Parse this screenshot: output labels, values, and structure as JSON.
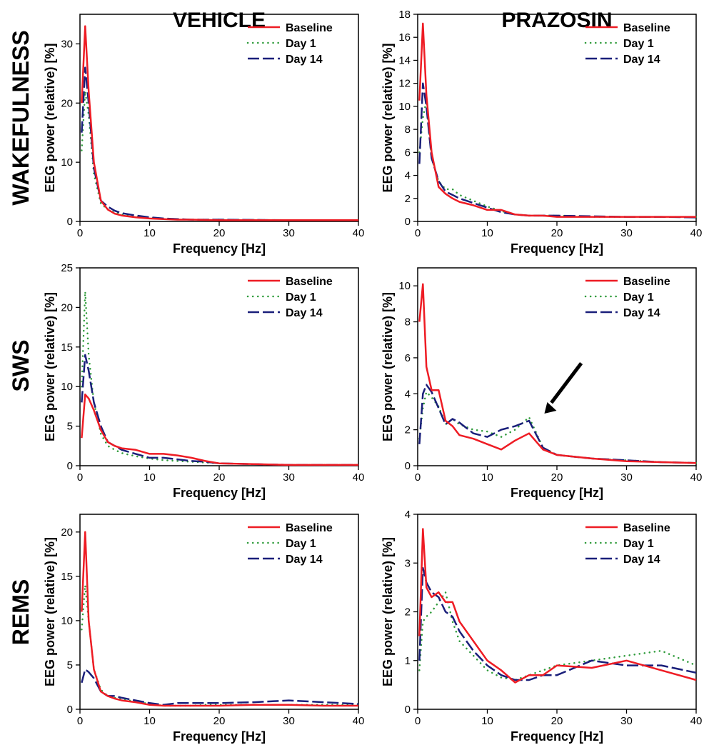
{
  "column_titles": [
    "VEHICLE",
    "PRAZOSIN"
  ],
  "row_labels": [
    "WAKEFULNESS",
    "SWS",
    "REMS"
  ],
  "colors": {
    "Baseline": "#ee1c24",
    "Day 1": "#2e9b3a",
    "Day 14": "#1a1f7a"
  },
  "chart_data": [
    {
      "type": "line",
      "title": "VEHICLE / WAKEFULNESS",
      "xlabel": "Frequency [Hz]",
      "ylabel": "EEG power (relative) [%]",
      "xlim": [
        0,
        40
      ],
      "ylim": [
        0,
        35
      ],
      "xticks": [
        0,
        10,
        20,
        30,
        40
      ],
      "yticks": [
        0,
        10,
        20,
        30
      ],
      "legend": "top-right",
      "x": [
        0.25,
        0.75,
        1.25,
        2,
        3,
        4,
        5,
        6,
        8,
        10,
        12,
        14,
        16,
        18,
        20,
        25,
        30,
        35,
        40
      ],
      "series": [
        {
          "name": "Baseline",
          "values": [
            20,
            33,
            22,
            10,
            3.5,
            2,
            1.3,
            1,
            0.7,
            0.5,
            0.4,
            0.3,
            0.3,
            0.25,
            0.2,
            0.2,
            0.2,
            0.2,
            0.2
          ]
        },
        {
          "name": "Day 1",
          "values": [
            12,
            22,
            18,
            8,
            3,
            2,
            1.5,
            1.2,
            0.8,
            0.6,
            0.5,
            0.4,
            0.3,
            0.3,
            0.3,
            0.25,
            0.2,
            0.2,
            0.2
          ]
        },
        {
          "name": "Day 14",
          "values": [
            15,
            26,
            20,
            9,
            3.5,
            2.5,
            1.8,
            1.4,
            1,
            0.7,
            0.5,
            0.4,
            0.3,
            0.3,
            0.3,
            0.25,
            0.2,
            0.2,
            0.2
          ]
        }
      ]
    },
    {
      "type": "line",
      "title": "PRAZOSIN / WAKEFULNESS",
      "xlabel": "Frequency [Hz]",
      "ylabel": "EEG power (relative) [%]",
      "xlim": [
        0,
        40
      ],
      "ylim": [
        0,
        18
      ],
      "xticks": [
        0,
        10,
        20,
        30,
        40
      ],
      "yticks": [
        0,
        2,
        4,
        6,
        8,
        10,
        12,
        14,
        16,
        18
      ],
      "legend": "top-right",
      "x": [
        0.25,
        0.75,
        1.25,
        2,
        3,
        4,
        5,
        6,
        8,
        10,
        12,
        14,
        16,
        18,
        20,
        25,
        30,
        35,
        40
      ],
      "series": [
        {
          "name": "Baseline",
          "values": [
            10.5,
            17.2,
            11,
            6,
            3,
            2.4,
            2,
            1.7,
            1.4,
            1,
            1,
            0.6,
            0.5,
            0.5,
            0.4,
            0.4,
            0.4,
            0.4,
            0.4
          ]
        },
        {
          "name": "Day 1",
          "values": [
            6,
            9,
            10.5,
            5.5,
            3.5,
            2.8,
            2.8,
            2.3,
            1.8,
            1.3,
            0.9,
            0.6,
            0.5,
            0.5,
            0.5,
            0.4,
            0.4,
            0.4,
            0.4
          ]
        },
        {
          "name": "Day 14",
          "values": [
            5,
            12,
            10,
            5.5,
            3.5,
            2.6,
            2.3,
            2,
            1.6,
            1.2,
            0.8,
            0.6,
            0.5,
            0.5,
            0.5,
            0.45,
            0.4,
            0.4,
            0.35
          ]
        }
      ]
    },
    {
      "type": "line",
      "title": "VEHICLE / SWS",
      "xlabel": "Frequency [Hz]",
      "ylabel": "EEG power (relative) [%]",
      "xlim": [
        0,
        40
      ],
      "ylim": [
        0,
        25
      ],
      "xticks": [
        0,
        10,
        20,
        30,
        40
      ],
      "yticks": [
        0,
        5,
        10,
        15,
        20,
        25
      ],
      "legend": "top-right",
      "x": [
        0.25,
        0.75,
        1.25,
        2,
        3,
        4,
        5,
        6,
        8,
        10,
        12,
        14,
        16,
        18,
        20,
        25,
        30,
        35,
        40
      ],
      "series": [
        {
          "name": "Baseline",
          "values": [
            3.5,
            9,
            8.5,
            7,
            4.5,
            3,
            2.5,
            2.2,
            2,
            1.5,
            1.5,
            1.3,
            1,
            0.6,
            0.3,
            0.2,
            0.1,
            0.1,
            0.1
          ]
        },
        {
          "name": "Day 1",
          "values": [
            10,
            22,
            14,
            8,
            4,
            2.5,
            2,
            1.6,
            1.2,
            0.9,
            0.7,
            0.6,
            0.5,
            0.4,
            0.3,
            0.2,
            0.1,
            0.1,
            0.1
          ]
        },
        {
          "name": "Day 14",
          "values": [
            8,
            14,
            12,
            8,
            5,
            3,
            2.5,
            2,
            1.5,
            1,
            1,
            0.8,
            0.6,
            0.5,
            0.3,
            0.2,
            0.1,
            0.1,
            0.1
          ]
        }
      ]
    },
    {
      "type": "line",
      "title": "PRAZOSIN / SWS",
      "xlabel": "Frequency [Hz]",
      "ylabel": "EEG power (relative) [%]",
      "xlim": [
        0,
        40
      ],
      "ylim": [
        0,
        11
      ],
      "xticks": [
        0,
        10,
        20,
        30,
        40
      ],
      "yticks": [
        0,
        2,
        4,
        6,
        8,
        10
      ],
      "legend": "top-right",
      "annotation": "arrow pointing at ~17 Hz peak",
      "x": [
        0.25,
        0.75,
        1.25,
        2,
        3,
        4,
        5,
        6,
        8,
        10,
        12,
        14,
        16,
        18,
        20,
        25,
        30,
        35,
        40
      ],
      "series": [
        {
          "name": "Baseline",
          "values": [
            8,
            10.1,
            5.5,
            4.2,
            4.2,
            2.5,
            2.2,
            1.7,
            1.5,
            1.2,
            0.9,
            1.4,
            1.8,
            0.9,
            0.6,
            0.4,
            0.25,
            0.2,
            0.15
          ]
        },
        {
          "name": "Day 1",
          "values": [
            1.5,
            3.2,
            4.1,
            3.8,
            3.3,
            2.3,
            2.6,
            2.3,
            2,
            1.9,
            1.6,
            2.0,
            2.7,
            1.0,
            0.6,
            0.4,
            0.3,
            0.2,
            0.15
          ]
        },
        {
          "name": "Day 14",
          "values": [
            1.2,
            4,
            4.5,
            4.1,
            3.2,
            2.3,
            2.6,
            2.4,
            1.8,
            1.6,
            2,
            2.2,
            2.5,
            1,
            0.6,
            0.4,
            0.3,
            0.2,
            0.15
          ]
        }
      ]
    },
    {
      "type": "line",
      "title": "VEHICLE / REMS",
      "xlabel": "Frequency [Hz]",
      "ylabel": "EEG power (relative) [%]",
      "xlim": [
        0,
        40
      ],
      "ylim": [
        0,
        22
      ],
      "xticks": [
        0,
        10,
        20,
        30,
        40
      ],
      "yticks": [
        0,
        5,
        10,
        15,
        20
      ],
      "legend": "top-right",
      "x": [
        0.25,
        0.75,
        1.25,
        2,
        3,
        4,
        5,
        6,
        8,
        10,
        12,
        14,
        16,
        18,
        20,
        25,
        30,
        35,
        40
      ],
      "series": [
        {
          "name": "Baseline",
          "values": [
            11,
            20,
            10,
            4.5,
            2,
            1.5,
            1.2,
            1,
            0.8,
            0.5,
            0.4,
            0.4,
            0.4,
            0.4,
            0.4,
            0.5,
            0.5,
            0.4,
            0.4
          ]
        },
        {
          "name": "Day 1",
          "values": [
            9,
            14,
            10,
            4.5,
            2.2,
            1.5,
            1.3,
            1.1,
            0.9,
            0.6,
            0.4,
            0.4,
            0.4,
            0.5,
            0.5,
            0.5,
            0.5,
            0.5,
            0.5
          ]
        },
        {
          "name": "Day 14",
          "values": [
            3,
            4.5,
            4.2,
            3.5,
            2,
            1.5,
            1.5,
            1.3,
            1,
            0.7,
            0.5,
            0.7,
            0.7,
            0.7,
            0.7,
            0.8,
            1,
            0.8,
            0.6
          ]
        }
      ]
    },
    {
      "type": "line",
      "title": "PRAZOSIN / REMS",
      "xlabel": "Frequency [Hz]",
      "ylabel": "EEG power (relative) [%]",
      "xlim": [
        0,
        40
      ],
      "ylim": [
        0,
        4
      ],
      "xticks": [
        0,
        10,
        20,
        30,
        40
      ],
      "yticks": [
        0,
        1,
        2,
        3,
        4
      ],
      "legend": "top-right",
      "x": [
        0.25,
        0.75,
        1.25,
        2,
        3,
        4,
        5,
        6,
        8,
        10,
        12,
        14,
        16,
        18,
        20,
        25,
        30,
        35,
        40
      ],
      "series": [
        {
          "name": "Baseline",
          "values": [
            1.5,
            3.7,
            2.5,
            2.3,
            2.4,
            2.2,
            2.2,
            1.8,
            1.4,
            1,
            0.8,
            0.55,
            0.7,
            0.7,
            0.9,
            0.85,
            1,
            0.8,
            0.6
          ]
        },
        {
          "name": "Day 1",
          "values": [
            0.8,
            1.8,
            1.9,
            2,
            2.2,
            2.4,
            1.8,
            1.4,
            1.1,
            0.8,
            0.65,
            0.6,
            0.7,
            0.8,
            0.9,
            1.0,
            1.1,
            1.2,
            0.9
          ]
        },
        {
          "name": "Day 14",
          "values": [
            1,
            2.9,
            2.6,
            2.4,
            2.3,
            2.0,
            1.9,
            1.6,
            1.2,
            0.9,
            0.7,
            0.6,
            0.6,
            0.7,
            0.7,
            1.0,
            0.9,
            0.9,
            0.75
          ]
        }
      ]
    }
  ]
}
